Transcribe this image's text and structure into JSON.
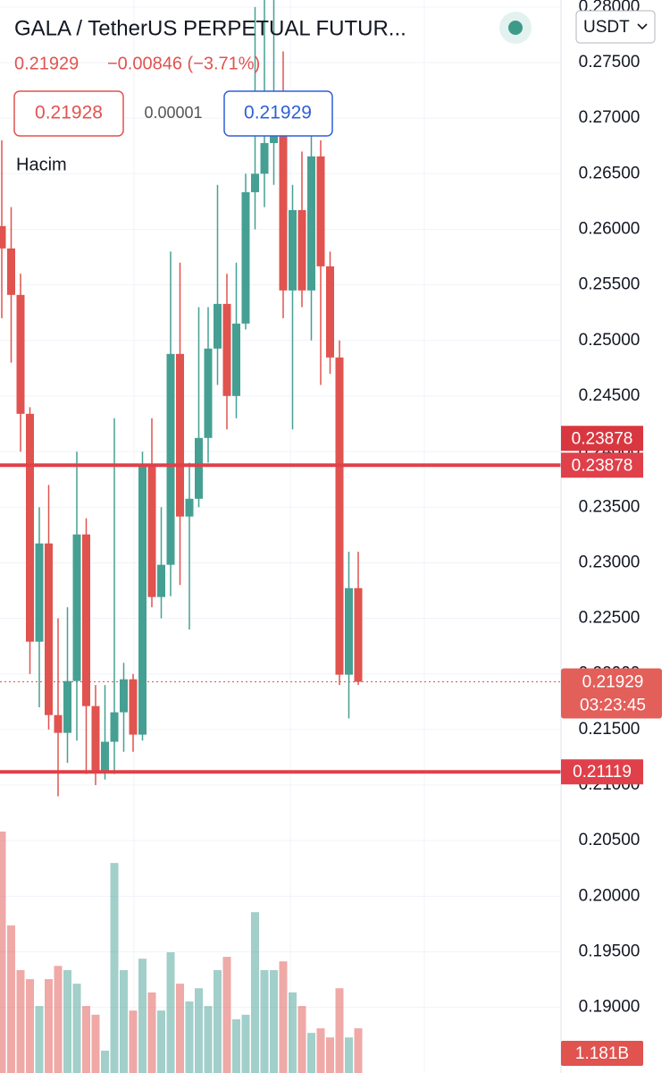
{
  "header": {
    "title": "GALA / TetherUS PERPETUAL FUTUR...",
    "price": "0.21929",
    "change": "−0.00846 (−3.71%)",
    "bid": "0.21928",
    "spread": "0.00001",
    "ask": "0.21929",
    "volume_title": "Hacim",
    "currency": "USDT"
  },
  "chart_data": {
    "type": "candlestick",
    "up_color": "#45a093",
    "down_color": "#e0534f",
    "ylim": [
      0.1841,
      0.28063
    ],
    "yticks": [
      {
        "value": 0.19,
        "label": "0.19000"
      },
      {
        "value": 0.195,
        "label": "0.19500"
      },
      {
        "value": 0.2,
        "label": "0.20000"
      },
      {
        "value": 0.205,
        "label": "0.20500"
      },
      {
        "value": 0.21,
        "label": "0.21000"
      },
      {
        "value": 0.215,
        "label": "0.21500"
      },
      {
        "value": 0.22,
        "label": "0.22000"
      },
      {
        "value": 0.225,
        "label": "0.22500"
      },
      {
        "value": 0.23,
        "label": "0.23000"
      },
      {
        "value": 0.235,
        "label": "0.23500"
      },
      {
        "value": 0.24,
        "label": "0.24000"
      },
      {
        "value": 0.245,
        "label": "0.24500"
      },
      {
        "value": 0.25,
        "label": "0.25000"
      },
      {
        "value": 0.255,
        "label": "0.25500"
      },
      {
        "value": 0.26,
        "label": "0.26000"
      },
      {
        "value": 0.265,
        "label": "0.26500"
      },
      {
        "value": 0.27,
        "label": "0.27000"
      },
      {
        "value": 0.275,
        "label": "0.27500"
      },
      {
        "value": 0.28,
        "label": "0.28000"
      }
    ],
    "grid": true,
    "open": [
      0.26029,
      0.25828,
      0.2541,
      0.2434,
      0.2229,
      0.23174,
      0.2163,
      0.2147,
      0.21936,
      0.23255,
      0.21711,
      0.21132,
      0.2139,
      0.21655,
      0.21952,
      0.21454,
      0.23882,
      0.22692,
      0.22982,
      0.24879,
      0.23416,
      0.23576,
      0.24123,
      0.24927,
      0.25329,
      0.24501,
      0.25152,
      0.26334,
      0.265,
      0.26776,
      0.27,
      0.2545,
      0.26173,
      0.2545,
      0.26656,
      0.25667,
      0.24847,
      0.21993,
      0.22772
    ],
    "high": [
      0.268,
      0.262,
      0.256,
      0.244,
      0.235,
      0.237,
      0.225,
      0.226,
      0.24,
      0.234,
      0.219,
      0.219,
      0.243,
      0.221,
      0.22,
      0.24,
      0.243,
      0.235,
      0.258,
      0.257,
      0.239,
      0.253,
      0.253,
      0.264,
      0.256,
      0.257,
      0.265,
      0.28,
      0.281,
      0.281,
      0.276,
      0.264,
      0.267,
      0.27,
      0.268,
      0.258,
      0.25,
      0.231,
      0.231
    ],
    "low": [
      0.252,
      0.248,
      0.24,
      0.22,
      0.217,
      0.215,
      0.209,
      0.212,
      0.214,
      0.211,
      0.21,
      0.2105,
      0.211,
      0.213,
      0.213,
      0.214,
      0.226,
      0.225,
      0.227,
      0.228,
      0.224,
      0.235,
      0.239,
      0.246,
      0.242,
      0.243,
      0.251,
      0.26,
      0.262,
      0.264,
      0.252,
      0.242,
      0.253,
      0.25,
      0.246,
      0.247,
      0.219,
      0.216,
      0.219
    ],
    "close": [
      0.25828,
      0.2541,
      0.2434,
      0.2229,
      0.23174,
      0.2163,
      0.2147,
      0.21936,
      0.23255,
      0.21711,
      0.21132,
      0.2139,
      0.21655,
      0.21952,
      0.21454,
      0.23882,
      0.22692,
      0.22982,
      0.24879,
      0.23416,
      0.23576,
      0.24123,
      0.24927,
      0.25329,
      0.24501,
      0.25152,
      0.26334,
      0.265,
      0.26776,
      0.27,
      0.2545,
      0.26173,
      0.2545,
      0.26656,
      0.25667,
      0.24847,
      0.21993,
      0.22772,
      0.21929
    ],
    "volume": {
      "values": [
        6.38,
        3.9,
        2.72,
        2.48,
        1.77,
        2.48,
        2.83,
        2.72,
        2.36,
        1.77,
        1.54,
        0.59,
        5.55,
        2.72,
        1.65,
        3.02,
        2.13,
        1.65,
        3.19,
        2.36,
        1.89,
        2.24,
        1.77,
        2.72,
        3.07,
        1.42,
        1.54,
        4.25,
        2.72,
        2.72,
        2.95,
        2.13,
        1.77,
        1.06,
        1.18,
        0.94,
        2.24,
        0.94,
        1.181
      ],
      "last_label": "1.181B"
    },
    "price_lines": [
      0.23878,
      0.21119
    ],
    "alert_price": 0.23878,
    "last_price": 0.21929,
    "countdown": "03:23:45"
  }
}
